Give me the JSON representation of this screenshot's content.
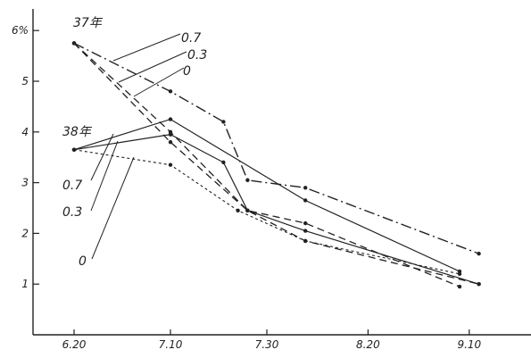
{
  "chart_data": {
    "type": "line",
    "x_ticks": [
      "6.20",
      "7.10",
      "7.30",
      "8.20",
      "9.10"
    ],
    "y_ticks": [
      "1",
      "2",
      "3",
      "4",
      "5",
      "6%"
    ],
    "x_range_days": [
      -8,
      96
    ],
    "ylim": [
      0,
      6.3
    ],
    "grid": false,
    "group_labels": [
      "37年",
      "38年"
    ],
    "series": [
      {
        "name": "0.7",
        "group": "37年",
        "style": "dashdot",
        "points": [
          [
            0,
            5.75
          ],
          [
            20,
            4.8
          ],
          [
            31,
            4.2
          ],
          [
            36,
            3.05
          ],
          [
            48,
            2.9
          ],
          [
            84,
            1.6
          ]
        ]
      },
      {
        "name": "0.3",
        "group": "37年",
        "style": "dashed",
        "points": [
          [
            0,
            5.75
          ],
          [
            20,
            3.8
          ],
          [
            36,
            2.45
          ],
          [
            48,
            2.2
          ],
          [
            80,
            0.95
          ]
        ]
      },
      {
        "name": "0",
        "group": "37年",
        "style": "dashed",
        "points": [
          [
            0,
            5.75
          ],
          [
            20,
            4.0
          ],
          [
            36,
            2.45
          ],
          [
            48,
            1.85
          ],
          [
            84,
            1.0
          ]
        ]
      },
      {
        "name": "0.7",
        "group": "38年",
        "style": "solid",
        "points": [
          [
            0,
            3.65
          ],
          [
            20,
            4.25
          ],
          [
            48,
            2.65
          ],
          [
            80,
            1.25
          ]
        ]
      },
      {
        "name": "0.3",
        "group": "38年",
        "style": "solid",
        "points": [
          [
            0,
            3.65
          ],
          [
            20,
            3.95
          ],
          [
            31,
            3.4
          ],
          [
            36,
            2.45
          ],
          [
            48,
            2.05
          ],
          [
            84,
            1.0
          ]
        ]
      },
      {
        "name": "0",
        "group": "38年",
        "style": "dotted",
        "points": [
          [
            0,
            3.65
          ],
          [
            20,
            3.35
          ],
          [
            34,
            2.45
          ],
          [
            48,
            1.85
          ],
          [
            80,
            1.2
          ]
        ]
      }
    ],
    "annotations": [
      {
        "text": "37年",
        "group": "37年"
      },
      {
        "text": "0.7",
        "series": 0
      },
      {
        "text": "0.3",
        "series": 1
      },
      {
        "text": "0",
        "series": 2
      },
      {
        "text": "38年",
        "group": "38年"
      },
      {
        "text": "0.7",
        "series": 3
      },
      {
        "text": "0.3",
        "series": 4
      },
      {
        "text": "0",
        "series": 5
      }
    ]
  }
}
